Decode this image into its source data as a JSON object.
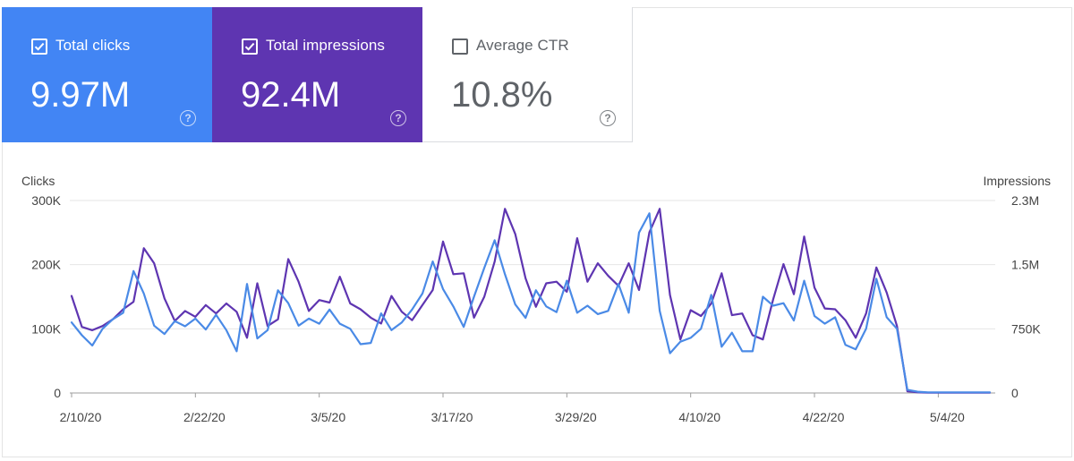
{
  "cards": [
    {
      "label": "Total clicks",
      "value": "9.97M",
      "checked": true,
      "color": "#4285f4"
    },
    {
      "label": "Total impressions",
      "value": "92.4M",
      "checked": true,
      "color": "#5e35b1"
    },
    {
      "label": "Average CTR",
      "value": "10.8%",
      "checked": false,
      "color": "#ffffff"
    }
  ],
  "help_glyph": "?",
  "chart_data": {
    "type": "line",
    "left_axis_label": "Clicks",
    "right_axis_label": "Impressions",
    "left_ticks": [
      "300K",
      "200K",
      "100K",
      "0"
    ],
    "right_ticks": [
      "2.3M",
      "1.5M",
      "750K",
      "0"
    ],
    "x_ticks": [
      "2/10/20",
      "2/22/20",
      "3/5/20",
      "3/17/20",
      "3/29/20",
      "4/10/20",
      "4/22/20",
      "5/4/20"
    ],
    "ylim_left": [
      0,
      300000
    ],
    "ylim_right": [
      0,
      2300000
    ],
    "grid": true,
    "x": [
      "2/10/20",
      "2/11/20",
      "2/12/20",
      "2/13/20",
      "2/14/20",
      "2/15/20",
      "2/16/20",
      "2/17/20",
      "2/18/20",
      "2/19/20",
      "2/20/20",
      "2/21/20",
      "2/22/20",
      "2/23/20",
      "2/24/20",
      "2/25/20",
      "2/26/20",
      "2/27/20",
      "2/28/20",
      "2/29/20",
      "3/1/20",
      "3/2/20",
      "3/3/20",
      "3/4/20",
      "3/5/20",
      "3/6/20",
      "3/7/20",
      "3/8/20",
      "3/9/20",
      "3/10/20",
      "3/11/20",
      "3/12/20",
      "3/13/20",
      "3/14/20",
      "3/15/20",
      "3/16/20",
      "3/17/20",
      "3/18/20",
      "3/19/20",
      "3/20/20",
      "3/21/20",
      "3/22/20",
      "3/23/20",
      "3/24/20",
      "3/25/20",
      "3/26/20",
      "3/27/20",
      "3/28/20",
      "3/29/20",
      "3/30/20",
      "3/31/20",
      "4/1/20",
      "4/2/20",
      "4/3/20",
      "4/4/20",
      "4/5/20",
      "4/6/20",
      "4/7/20",
      "4/8/20",
      "4/9/20",
      "4/10/20",
      "4/11/20",
      "4/12/20",
      "4/13/20",
      "4/14/20",
      "4/15/20",
      "4/16/20",
      "4/17/20",
      "4/18/20",
      "4/19/20",
      "4/20/20",
      "4/21/20",
      "4/22/20",
      "4/23/20",
      "4/24/20",
      "4/25/20",
      "4/26/20",
      "4/27/20",
      "4/28/20",
      "4/29/20",
      "4/30/20",
      "5/1/20",
      "5/2/20",
      "5/3/20",
      "5/4/20",
      "5/5/20",
      "5/6/20",
      "5/7/20",
      "5/8/20",
      "5/9/20"
    ],
    "series": [
      {
        "name": "Total clicks",
        "axis": "left",
        "color": "#4a8ae6",
        "values": [
          110000,
          90000,
          74000,
          100000,
          115000,
          125000,
          190000,
          155000,
          105000,
          92000,
          112000,
          104000,
          116000,
          99000,
          122000,
          98000,
          65000,
          170000,
          85000,
          98000,
          160000,
          140000,
          105000,
          116000,
          108000,
          130000,
          108000,
          100000,
          76000,
          78000,
          124000,
          98000,
          110000,
          130000,
          155000,
          205000,
          162000,
          135000,
          103000,
          150000,
          195000,
          238000,
          185000,
          138000,
          117000,
          160000,
          135000,
          126000,
          175000,
          125000,
          136000,
          123000,
          128000,
          170000,
          125000,
          250000,
          280000,
          128000,
          62000,
          80000,
          86000,
          100000,
          153000,
          72000,
          94000,
          65000,
          65000,
          150000,
          136000,
          140000,
          113000,
          175000,
          120000,
          108000,
          118000,
          75000,
          68000,
          100000,
          178000,
          118000,
          100000,
          5000,
          2000,
          1000,
          1000,
          1000,
          1000,
          1000,
          1000,
          1000
        ]
      },
      {
        "name": "Total impressions",
        "axis": "right",
        "color": "#5e35b1",
        "values": [
          1160000,
          790000,
          750000,
          800000,
          880000,
          1000000,
          1090000,
          1730000,
          1550000,
          1130000,
          860000,
          980000,
          910000,
          1050000,
          950000,
          1070000,
          970000,
          660000,
          1310000,
          800000,
          880000,
          1600000,
          1330000,
          980000,
          1110000,
          1080000,
          1390000,
          1070000,
          1000000,
          900000,
          830000,
          1160000,
          970000,
          870000,
          1050000,
          1230000,
          1810000,
          1420000,
          1430000,
          900000,
          1150000,
          1570000,
          2200000,
          1900000,
          1370000,
          1030000,
          1310000,
          1330000,
          1210000,
          1850000,
          1330000,
          1550000,
          1400000,
          1280000,
          1550000,
          1230000,
          1920000,
          2200000,
          1170000,
          640000,
          990000,
          920000,
          1070000,
          1430000,
          930000,
          950000,
          690000,
          640000,
          1120000,
          1540000,
          1180000,
          1870000,
          1260000,
          1010000,
          1000000,
          870000,
          660000,
          950000,
          1500000,
          1200000,
          800000,
          20000,
          8000,
          4000,
          4000,
          4000,
          4000,
          4000,
          4000,
          4000
        ]
      }
    ]
  }
}
